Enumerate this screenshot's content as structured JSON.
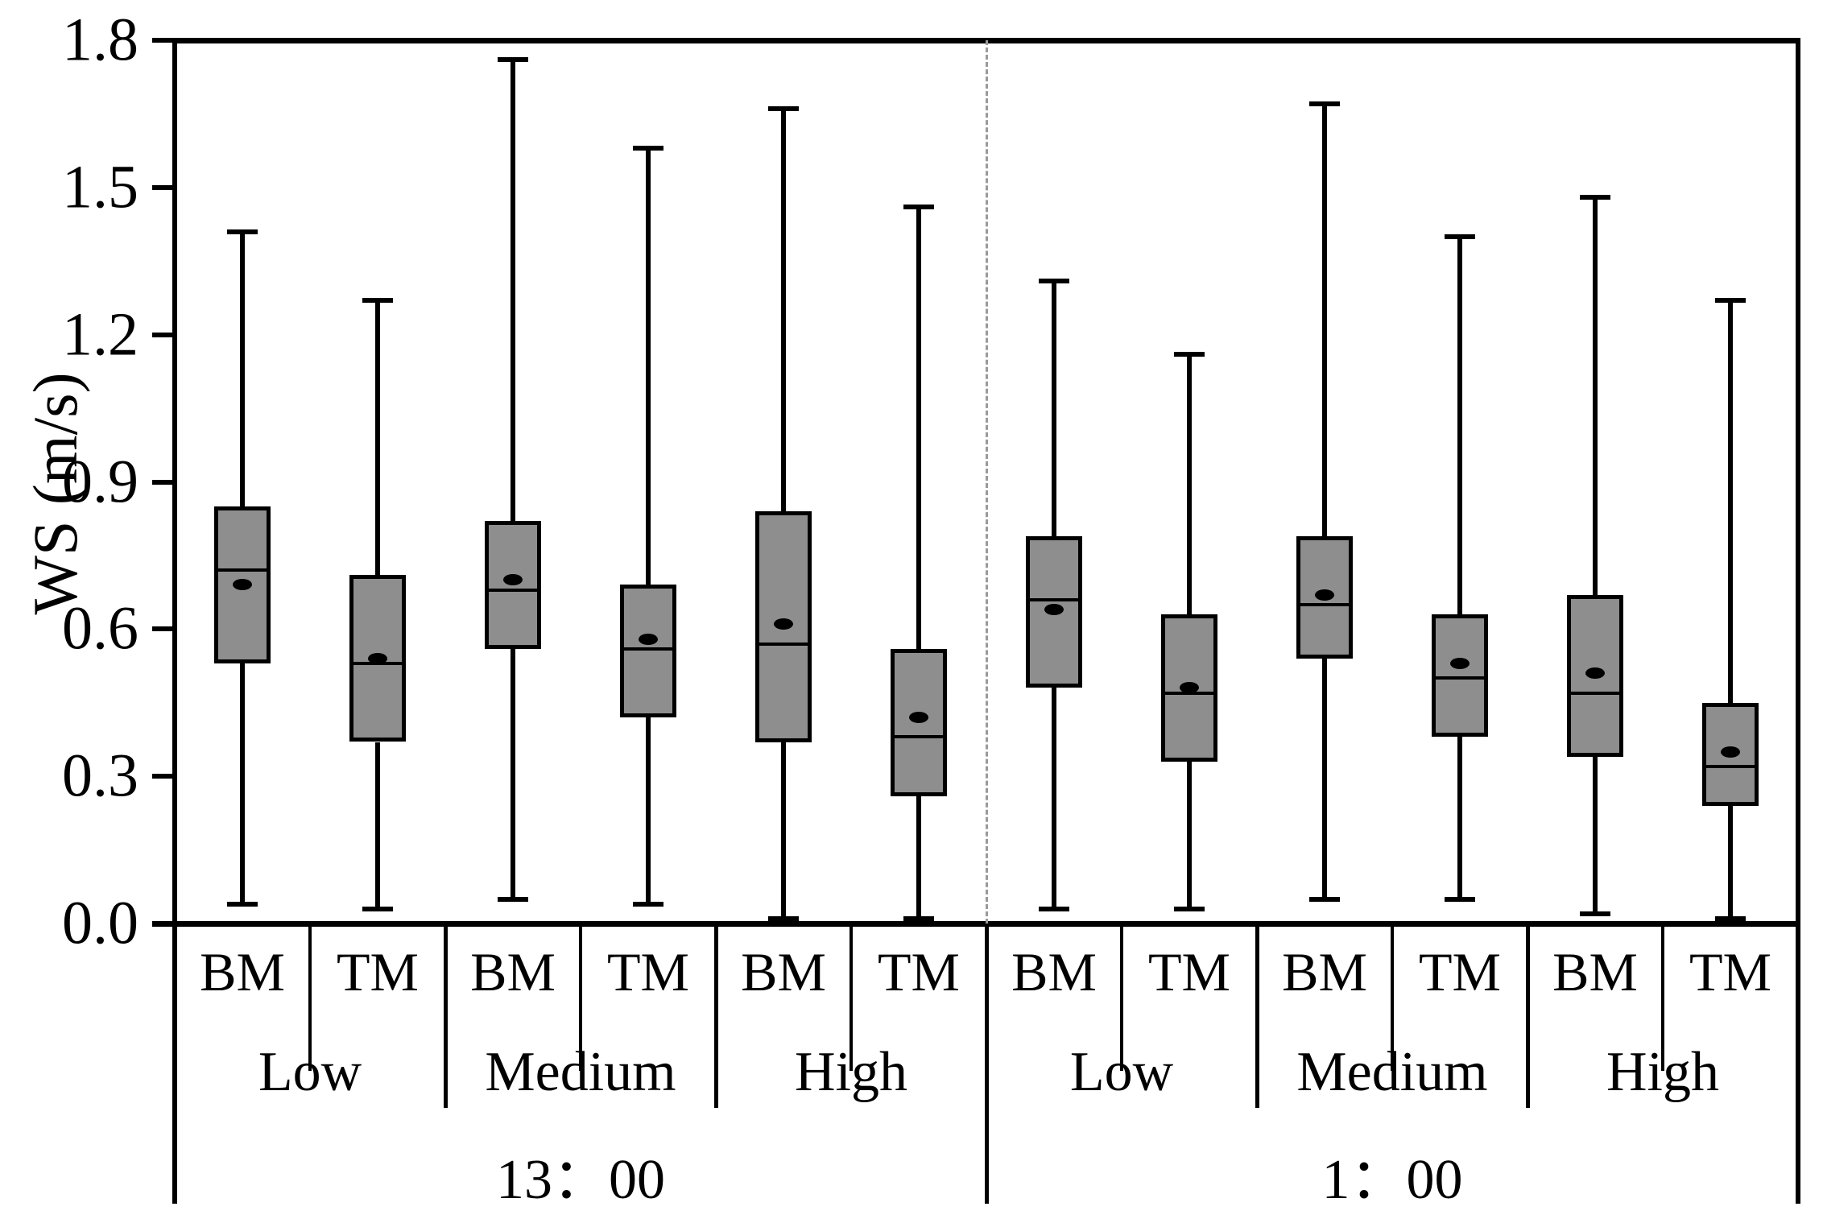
{
  "figure": {
    "background": "#ffffff"
  },
  "chart_data": {
    "type": "boxplot",
    "ylabel": "WS (m/s)",
    "ylim": [
      0.0,
      1.8
    ],
    "yticks": [
      0.0,
      0.3,
      0.6,
      0.9,
      1.2,
      1.5,
      1.8
    ],
    "ytick_labels": [
      "0.0",
      "0.3",
      "0.6",
      "0.9",
      "1.2",
      "1.5",
      "1.8"
    ],
    "grid": false,
    "legend": "none",
    "box_fill_color": "#8e8e8e",
    "line_color": "#000000",
    "divider_color": "#9a9a9a",
    "series_labels": [
      "BM",
      "TM"
    ],
    "time_groups": [
      {
        "label": "13：00",
        "levels": [
          {
            "label": "Low",
            "boxes": [
              {
                "label": "BM",
                "whisker_low": 0.04,
                "q1": 0.53,
                "median": 0.72,
                "mean": 0.69,
                "q3": 0.85,
                "whisker_high": 1.41
              },
              {
                "label": "TM",
                "whisker_low": 0.03,
                "q1": 0.37,
                "median": 0.53,
                "mean": 0.54,
                "q3": 0.71,
                "whisker_high": 1.27
              }
            ]
          },
          {
            "label": "Medium",
            "boxes": [
              {
                "label": "BM",
                "whisker_low": 0.05,
                "q1": 0.56,
                "median": 0.68,
                "mean": 0.7,
                "q3": 0.82,
                "whisker_high": 1.76
              },
              {
                "label": "TM",
                "whisker_low": 0.04,
                "q1": 0.42,
                "median": 0.56,
                "mean": 0.58,
                "q3": 0.69,
                "whisker_high": 1.58
              }
            ]
          },
          {
            "label": "High",
            "boxes": [
              {
                "label": "BM",
                "whisker_low": 0.01,
                "q1": 0.37,
                "median": 0.57,
                "mean": 0.61,
                "q3": 0.84,
                "whisker_high": 1.66
              },
              {
                "label": "TM",
                "whisker_low": 0.01,
                "q1": 0.26,
                "median": 0.38,
                "mean": 0.42,
                "q3": 0.56,
                "whisker_high": 1.46
              }
            ]
          }
        ]
      },
      {
        "label": "1：00",
        "levels": [
          {
            "label": "Low",
            "boxes": [
              {
                "label": "BM",
                "whisker_low": 0.03,
                "q1": 0.48,
                "median": 0.66,
                "mean": 0.64,
                "q3": 0.79,
                "whisker_high": 1.31
              },
              {
                "label": "TM",
                "whisker_low": 0.03,
                "q1": 0.33,
                "median": 0.47,
                "mean": 0.48,
                "q3": 0.63,
                "whisker_high": 1.16
              }
            ]
          },
          {
            "label": "Medium",
            "boxes": [
              {
                "label": "BM",
                "whisker_low": 0.05,
                "q1": 0.54,
                "median": 0.65,
                "mean": 0.67,
                "q3": 0.79,
                "whisker_high": 1.67
              },
              {
                "label": "TM",
                "whisker_low": 0.05,
                "q1": 0.38,
                "median": 0.5,
                "mean": 0.53,
                "q3": 0.63,
                "whisker_high": 1.4
              }
            ]
          },
          {
            "label": "High",
            "boxes": [
              {
                "label": "BM",
                "whisker_low": 0.02,
                "q1": 0.34,
                "median": 0.47,
                "mean": 0.51,
                "q3": 0.67,
                "whisker_high": 1.48
              },
              {
                "label": "TM",
                "whisker_low": 0.01,
                "q1": 0.24,
                "median": 0.32,
                "mean": 0.35,
                "q3": 0.45,
                "whisker_high": 1.27
              }
            ]
          }
        ]
      }
    ]
  }
}
